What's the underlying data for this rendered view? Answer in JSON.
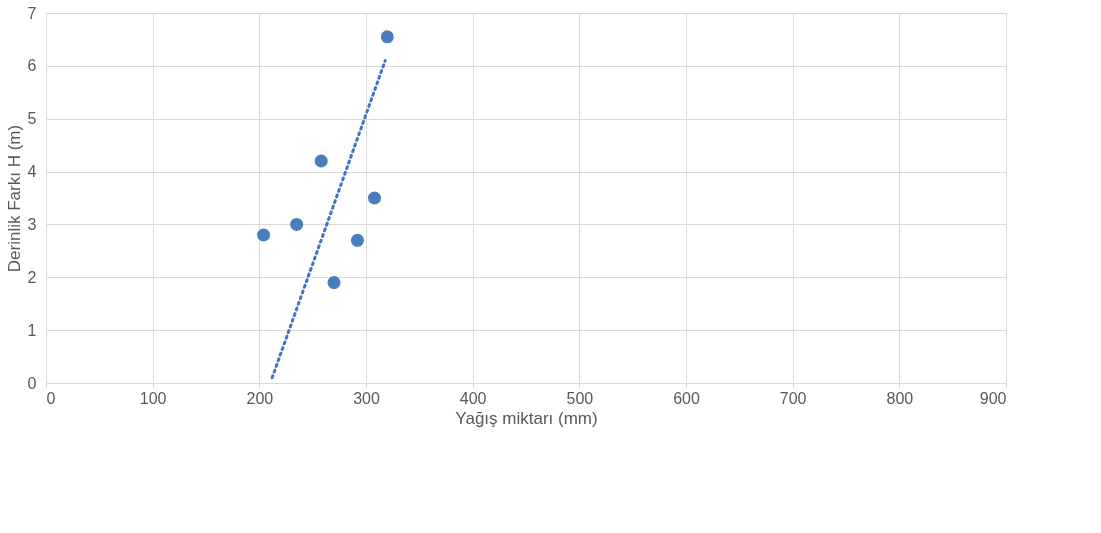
{
  "chart_data": {
    "type": "scatter",
    "xlabel": "Yağış miktarı (mm)",
    "ylabel": "Derinlik Farkı H (m)",
    "x": [
      204,
      235,
      258,
      270,
      292,
      308,
      320
    ],
    "series": [
      {
        "color": "#4a7ebb",
        "marker": "circle",
        "values": [
          2.8,
          3.0,
          4.2,
          1.9,
          2.7,
          3.5,
          6.55
        ]
      },
      {
        "type": "line",
        "color": "#4472c4",
        "line_style": "dotted",
        "marker": "none",
        "x": [
          212,
          318
        ],
        "values": [
          0.1,
          6.1
        ]
      }
    ],
    "xlim": [
      0,
      900
    ],
    "xticks": [
      0,
      100,
      200,
      300,
      400,
      500,
      600,
      700,
      800,
      900
    ],
    "ylim": [
      0,
      7
    ],
    "yticks": [
      0,
      1,
      2,
      3,
      4,
      5,
      6,
      7
    ],
    "grid": true
  }
}
